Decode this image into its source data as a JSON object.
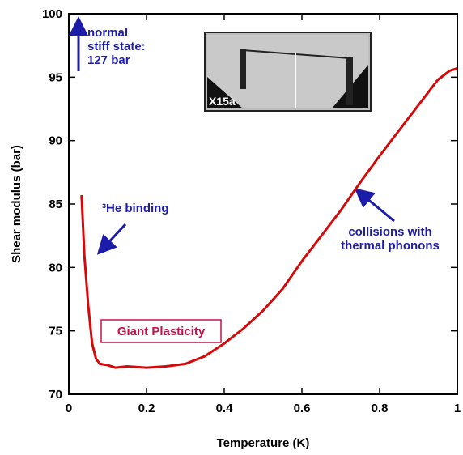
{
  "chart_data": {
    "type": "line",
    "x_label": "Temperature (K)",
    "y_label": "Shear modulus  (bar)",
    "xlim": [
      0,
      1
    ],
    "ylim": [
      70,
      100
    ],
    "xticks": [
      0,
      0.2,
      0.4,
      0.6,
      0.8,
      1
    ],
    "yticks": [
      70,
      75,
      80,
      85,
      90,
      95,
      100
    ],
    "series": [
      {
        "color": "#d40a0a",
        "x": [
          0.033,
          0.04,
          0.05,
          0.06,
          0.07,
          0.08,
          0.1,
          0.12,
          0.15,
          0.2,
          0.25,
          0.3,
          0.35,
          0.4,
          0.45,
          0.5,
          0.55,
          0.6,
          0.65,
          0.7,
          0.75,
          0.8,
          0.85,
          0.9,
          0.95,
          0.98,
          1.0
        ],
        "values": [
          85.7,
          81,
          77,
          74,
          72.8,
          72.4,
          72.3,
          72.1,
          72.2,
          72.1,
          72.2,
          72.4,
          73,
          74,
          75.2,
          76.6,
          78.3,
          80.5,
          82.5,
          84.5,
          86.7,
          88.8,
          90.8,
          92.8,
          94.8,
          95.5,
          95.7
        ]
      }
    ],
    "annotations": {
      "stiff": [
        "normal",
        "stiff state:",
        "127 bar"
      ],
      "binding": "³He binding",
      "phonons": [
        "collisions with",
        "thermal phonons"
      ],
      "plasticity": "Giant Plasticity",
      "inset": "X15a"
    }
  }
}
